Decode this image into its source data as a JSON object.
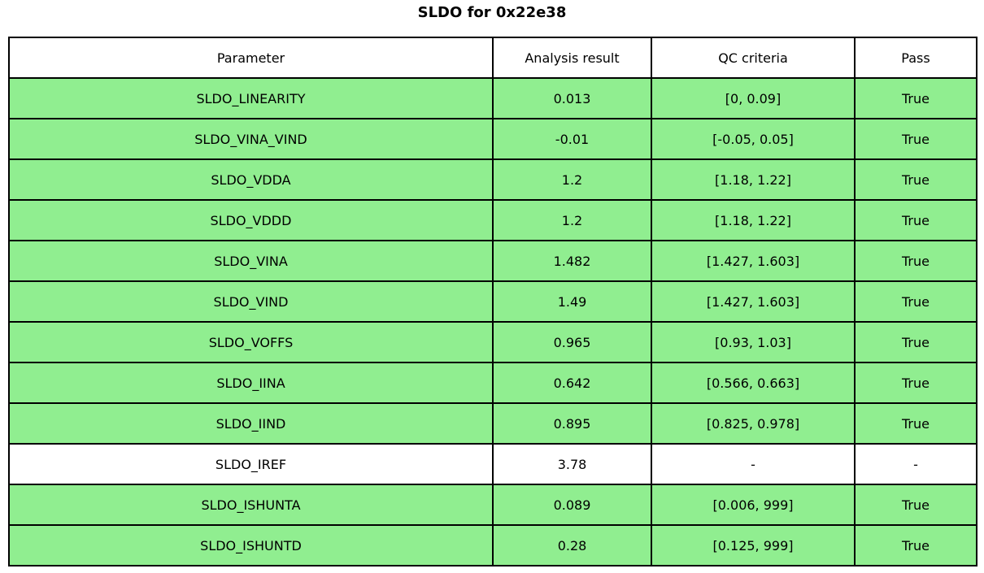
{
  "title": "SLDO for 0x22e38",
  "chart_data": {
    "type": "table",
    "title": "SLDO for 0x22e38",
    "columns": [
      "Parameter",
      "Analysis result",
      "QC criteria",
      "Pass"
    ],
    "rows": [
      {
        "parameter": "SLDO_LINEARITY",
        "result": "0.013",
        "criteria": "[0, 0.09]",
        "pass": "True",
        "highlighted": true
      },
      {
        "parameter": "SLDO_VINA_VIND",
        "result": "-0.01",
        "criteria": "[-0.05, 0.05]",
        "pass": "True",
        "highlighted": true
      },
      {
        "parameter": "SLDO_VDDA",
        "result": "1.2",
        "criteria": "[1.18, 1.22]",
        "pass": "True",
        "highlighted": true
      },
      {
        "parameter": "SLDO_VDDD",
        "result": "1.2",
        "criteria": "[1.18, 1.22]",
        "pass": "True",
        "highlighted": true
      },
      {
        "parameter": "SLDO_VINA",
        "result": "1.482",
        "criteria": "[1.427, 1.603]",
        "pass": "True",
        "highlighted": true
      },
      {
        "parameter": "SLDO_VIND",
        "result": "1.49",
        "criteria": "[1.427, 1.603]",
        "pass": "True",
        "highlighted": true
      },
      {
        "parameter": "SLDO_VOFFS",
        "result": "0.965",
        "criteria": "[0.93, 1.03]",
        "pass": "True",
        "highlighted": true
      },
      {
        "parameter": "SLDO_IINA",
        "result": "0.642",
        "criteria": "[0.566, 0.663]",
        "pass": "True",
        "highlighted": true
      },
      {
        "parameter": "SLDO_IIND",
        "result": "0.895",
        "criteria": "[0.825, 0.978]",
        "pass": "True",
        "highlighted": true
      },
      {
        "parameter": "SLDO_IREF",
        "result": "3.78",
        "criteria": "-",
        "pass": "-",
        "highlighted": false
      },
      {
        "parameter": "SLDO_ISHUNTA",
        "result": "0.089",
        "criteria": "[0.006, 999]",
        "pass": "True",
        "highlighted": true
      },
      {
        "parameter": "SLDO_ISHUNTD",
        "result": "0.28",
        "criteria": "[0.125, 999]",
        "pass": "True",
        "highlighted": true
      }
    ],
    "layout": {
      "legend": "none",
      "grid": "full-cell-borders"
    }
  },
  "colors": {
    "pass_row_green": "#90ee90",
    "neutral_row_white": "#ffffff",
    "border_black": "#000000",
    "text_black": "#000000",
    "background_white": "#ffffff"
  }
}
